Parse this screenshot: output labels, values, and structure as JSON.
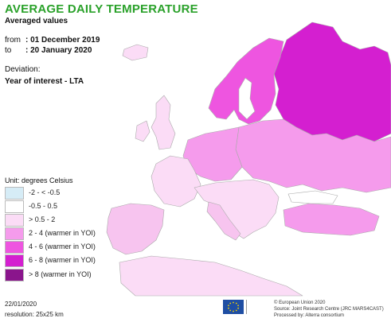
{
  "header": {
    "title": "AVERAGE DAILY TEMPERATURE",
    "subtitle": "Averaged values",
    "from_label": "from",
    "from_value": ": 01 December 2019",
    "to_label": "to",
    "to_value": ": 20 January 2020",
    "deviation_label": "Deviation:",
    "deviation_value": "Year of interest - LTA"
  },
  "legend": {
    "unit": "Unit: degrees Celsius",
    "classes": [
      {
        "label": "-2 - < -0.5",
        "color": "#d6ecf6"
      },
      {
        "label": "-0.5 - 0.5",
        "color": "#ffffff"
      },
      {
        "label": "> 0.5 - 2",
        "color": "#fbdcf6"
      },
      {
        "label": "2 - 4 (warmer in YOI)",
        "color": "#f59bec"
      },
      {
        "label": "4 - 6 (warmer in YOI)",
        "color": "#ee55e0"
      },
      {
        "label": "6 - 8 (warmer in YOI)",
        "color": "#d41fd0"
      },
      {
        "label": "> 8 (warmer in YOI)",
        "color": "#8a158c"
      }
    ]
  },
  "footer": {
    "date": "22/01/2020",
    "resolution": "resolution: 25x25 km",
    "credit_1": "© European Union 2020",
    "credit_2": "Source: Joint Research Centre (JRC MARS4CAST)",
    "credit_3": "Processed by: Alterra consortium"
  },
  "colors": {
    "title": "#2aa12a",
    "sea": "#ffffff",
    "border": "#9a9a9a"
  },
  "icons": [
    "eu-flag-icon",
    "jrc-logo-icon"
  ]
}
